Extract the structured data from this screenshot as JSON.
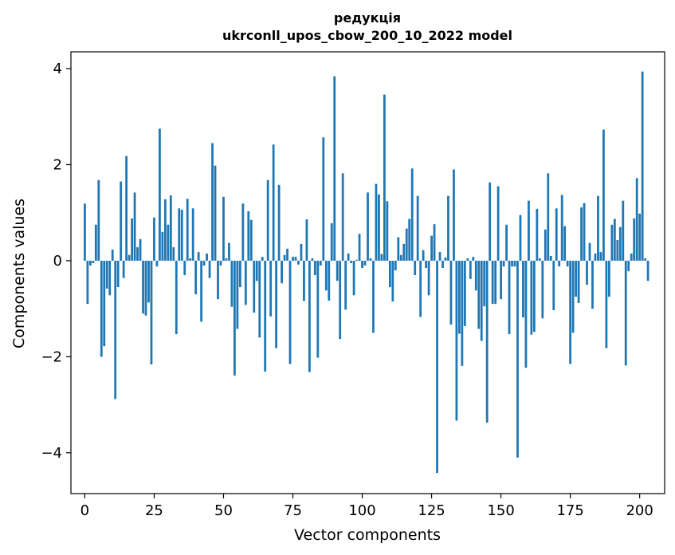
{
  "chart_data": {
    "type": "bar",
    "title": "редукція",
    "subtitle": "ukrconll_upos_cbow_200_10_2022 model",
    "xlabel": "Vector components",
    "ylabel": "Components values",
    "xlim": [
      -5,
      209
    ],
    "ylim": [
      -4.85,
      4.35
    ],
    "xticks": [
      0,
      25,
      50,
      75,
      100,
      125,
      150,
      175,
      200
    ],
    "yticks": [
      -4,
      -2,
      0,
      2,
      4
    ],
    "xtick_labels": [
      "0",
      "25",
      "50",
      "75",
      "100",
      "125",
      "150",
      "175",
      "200"
    ],
    "ytick_labels": [
      "−4",
      "−2",
      "0",
      "2",
      "4"
    ],
    "bar_color": "#1f77b4",
    "grid": false,
    "values": [
      1.19,
      -0.9,
      -0.1,
      -0.05,
      0.75,
      1.68,
      -2.0,
      -1.78,
      -0.58,
      -0.72,
      0.23,
      -2.88,
      -0.55,
      1.65,
      -0.36,
      2.18,
      0.12,
      0.88,
      1.42,
      0.28,
      0.45,
      -1.1,
      -1.14,
      -0.87,
      -2.16,
      0.9,
      -0.12,
      2.75,
      0.6,
      1.28,
      0.75,
      1.36,
      0.28,
      -1.53,
      1.09,
      1.06,
      -0.3,
      1.29,
      0.05,
      1.09,
      -0.7,
      0.18,
      -1.27,
      -0.1,
      0.15,
      -0.36,
      2.45,
      1.98,
      -0.8,
      -0.1,
      1.33,
      0.05,
      0.37,
      -0.96,
      -2.39,
      -1.42,
      -0.55,
      1.19,
      -0.92,
      1.03,
      0.85,
      -1.08,
      -0.42,
      -1.6,
      0.08,
      -2.31,
      1.68,
      -1.16,
      2.42,
      -1.82,
      1.58,
      -0.47,
      0.12,
      0.25,
      -2.15,
      0.08,
      0.08,
      -0.08,
      0.35,
      -0.84,
      0.86,
      -2.32,
      0.05,
      -0.3,
      -2.02,
      -0.1,
      2.57,
      -0.62,
      -0.83,
      0.78,
      3.84,
      -0.42,
      -1.63,
      1.82,
      -1.02,
      0.15,
      -0.05,
      -0.72,
      0.02,
      0.56,
      -0.15,
      -0.1,
      1.42,
      0.05,
      -1.5,
      1.6,
      1.38,
      0.14,
      3.46,
      1.24,
      -0.55,
      -0.85,
      -0.2,
      0.49,
      0.12,
      0.35,
      0.67,
      0.87,
      1.92,
      -0.3,
      1.35,
      -1.17,
      0.22,
      -0.15,
      -0.72,
      0.52,
      0.76,
      -4.42,
      0.18,
      -0.15,
      0.07,
      1.35,
      -1.33,
      1.9,
      -3.33,
      -1.52,
      -2.19,
      -1.36,
      0.05,
      -0.38,
      0.08,
      -0.62,
      -1.42,
      -1.67,
      -0.95,
      -3.37,
      1.63,
      -0.9,
      -0.9,
      1.55,
      -0.8,
      -0.12,
      0.75,
      -1.53,
      -0.12,
      -0.12,
      -4.1,
      0.95,
      -1.18,
      -2.23,
      1.25,
      -1.54,
      -1.48,
      1.08,
      0.05,
      -1.2,
      0.65,
      1.82,
      0.1,
      -1.03,
      1.09,
      -0.12,
      1.37,
      0.72,
      -0.12,
      -2.15,
      -1.5,
      -0.75,
      -0.88,
      1.11,
      1.2,
      -0.5,
      0.37,
      -1.0,
      0.15,
      1.35,
      0.18,
      2.73,
      -1.82,
      -0.75,
      0.75,
      0.87,
      0.43,
      0.7,
      1.25,
      -2.18,
      -0.22,
      0.15,
      0.88,
      1.72,
      0.98,
      3.94,
      0.05,
      -0.42
    ]
  }
}
